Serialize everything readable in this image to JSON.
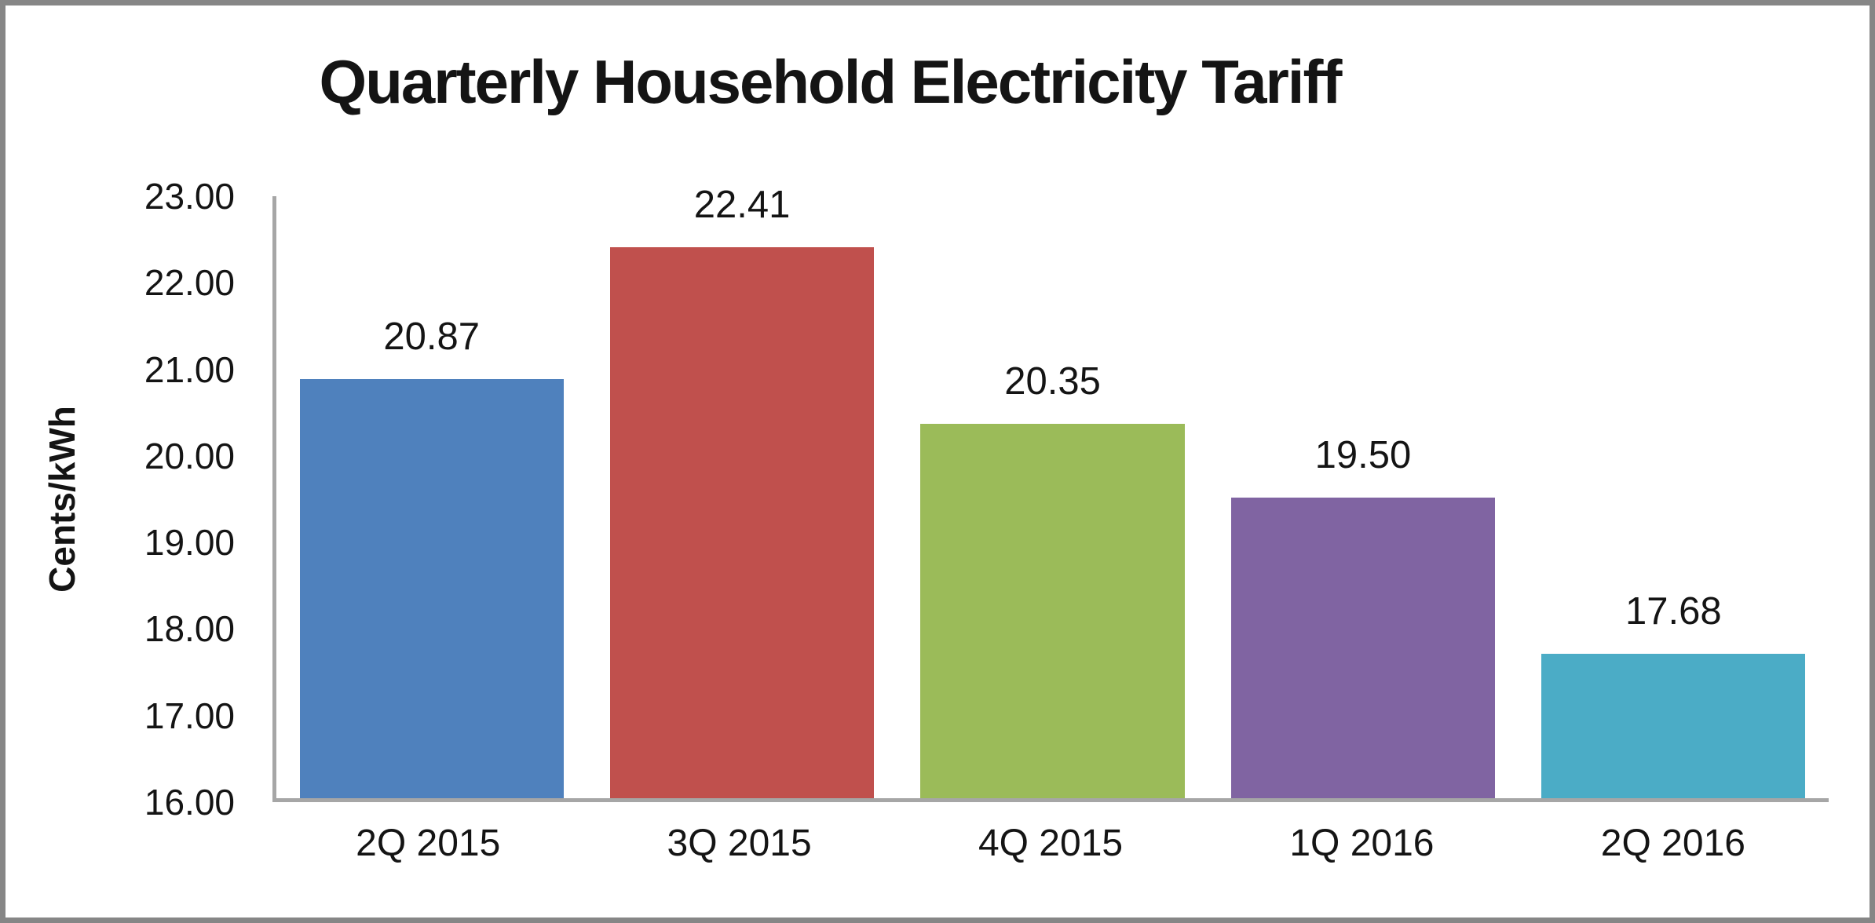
{
  "chart_data": {
    "type": "bar",
    "title": "Quarterly Household Electricity Tariff",
    "ylabel": "Cents/kWh",
    "xlabel": "",
    "categories": [
      "2Q 2015",
      "3Q 2015",
      "4Q 2015",
      "1Q 2016",
      "2Q 2016"
    ],
    "values": [
      20.87,
      22.41,
      20.35,
      19.5,
      17.68
    ],
    "value_labels": [
      "20.87",
      "22.41",
      "20.35",
      "19.50",
      "17.68"
    ],
    "bar_colors": [
      "#4F81BD",
      "#C0504D",
      "#9BBB59",
      "#8064A2",
      "#4BACC6"
    ],
    "ylim": [
      16,
      23
    ],
    "ytick_step": 1.0,
    "yticks": [
      "23.00",
      "22.00",
      "21.00",
      "20.00",
      "19.00",
      "18.00",
      "17.00",
      "16.00"
    ],
    "grid": false,
    "legend": false,
    "axis_color": "#A6A6A6",
    "frame_border_color": "#868686",
    "text_color": "#141414"
  }
}
